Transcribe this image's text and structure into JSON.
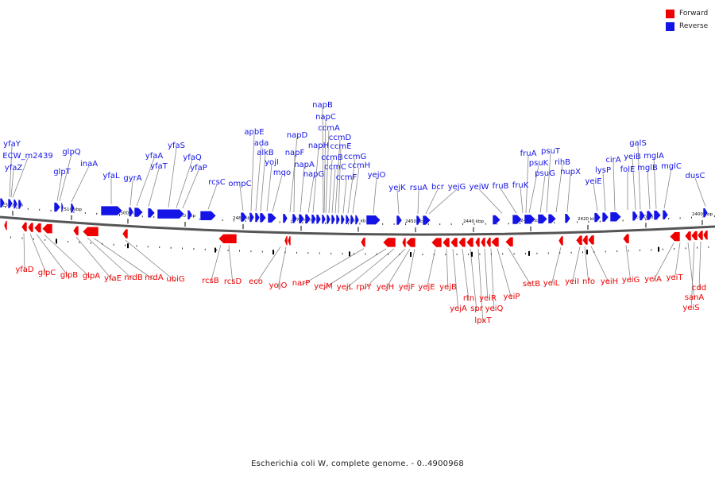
{
  "caption": "Escherichia coli W, complete genome. - 0..4900968",
  "legend": [
    {
      "label": "Forward",
      "color": "#ee0000"
    },
    {
      "label": "Reverse",
      "color": "#1414e6"
    }
  ],
  "colors": {
    "forward": "#ee0000",
    "reverse": "#1414e6",
    "backbone": "#555555",
    "leader": "#888888"
  },
  "ticks": [
    "2520 kbp",
    "2510 kbp",
    "2500 kbp",
    "2490 kbp",
    "2480 kbp",
    "2470 kbp",
    "2460 kbp",
    "2450 kbp",
    "2440 kbp",
    "2430 kbp",
    "2420 kbp",
    "2410 kbp",
    "2400 kbp"
  ],
  "reverse_genes": [
    "ECW_m2439",
    "yfaY",
    "yfaZ",
    "glpT",
    "glpQ",
    "inaA",
    "yfaL",
    "gyrA",
    "yfaA",
    "yfaT",
    "yfaS",
    "yfaQ",
    "yfaP",
    "rcsC",
    "ompC",
    "apbE",
    "ada",
    "alkB",
    "yojI",
    "mqo",
    "napD",
    "napF",
    "napA",
    "napG",
    "napH",
    "napB",
    "napC",
    "ccmA",
    "ccmB",
    "ccmC",
    "ccmD",
    "ccmE",
    "ccmF",
    "ccmG",
    "ccmH",
    "yejO",
    "yejK",
    "rsuA",
    "bcr",
    "yejG",
    "yeiW",
    "fruB",
    "fruK",
    "fruA",
    "psuK",
    "psuG",
    "psuT",
    "rihB",
    "nupX",
    "yeiE",
    "lysP",
    "cirA",
    "folE",
    "yeiB",
    "galS",
    "mglB",
    "mglA",
    "mglC",
    "dusC"
  ],
  "forward_genes": [
    "yfaD",
    "glpC",
    "glpB",
    "glpA",
    "yfaE",
    "nrdB",
    "nrdA",
    "ubiG",
    "rcsB",
    "rcsD",
    "eco",
    "yojO",
    "narP",
    "yejM",
    "yejL",
    "rplY",
    "yejH",
    "yejF",
    "yejE",
    "yejB",
    "yejA",
    "rtn",
    "spr",
    "lpxT",
    "yeiR",
    "yeiQ",
    "yeiP",
    "setB",
    "yeiL",
    "yeiI",
    "nfo",
    "yeiH",
    "yeiG",
    "yeiA",
    "yeiT",
    "sanA",
    "yeiS",
    "cdd"
  ]
}
